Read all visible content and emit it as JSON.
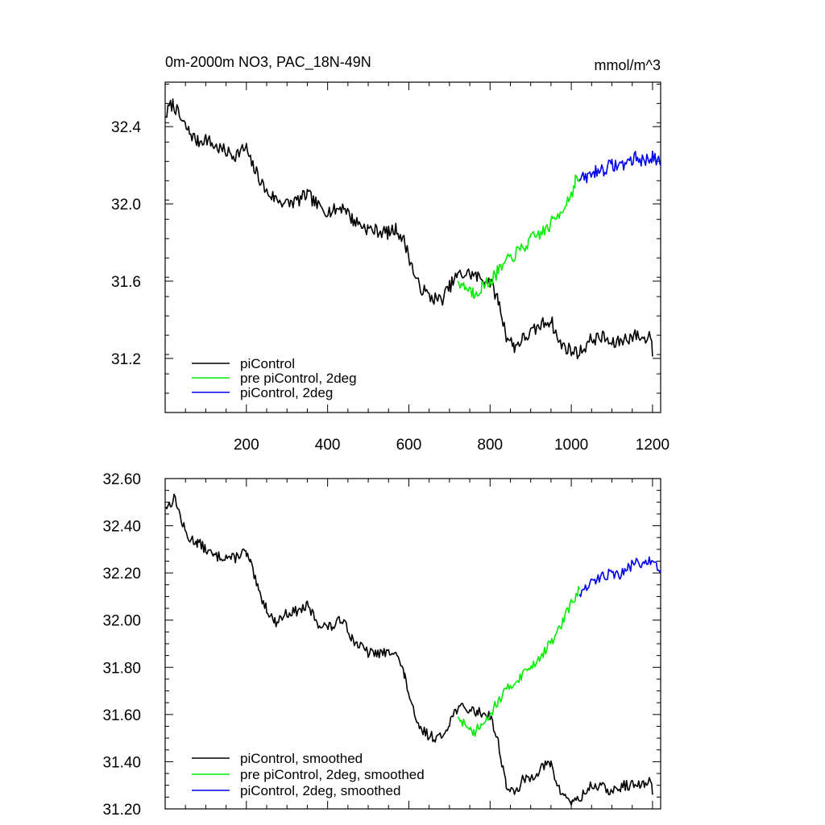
{
  "chart_data": [
    {
      "type": "line",
      "title": "0m-2000m NO3, PAC_18N-49N",
      "units": "mmol/m^3",
      "xlim": [
        0,
        1220
      ],
      "ylim": [
        30.92,
        32.63
      ],
      "x_ticks": [
        200,
        400,
        600,
        800,
        1000,
        1200
      ],
      "x_tick_labels": [
        "200",
        "400",
        "600",
        "800",
        "1000",
        "1200"
      ],
      "y_ticks": [
        31.2,
        31.6,
        32.0,
        32.4
      ],
      "y_tick_labels": [
        "31.2",
        "31.6",
        "32.0",
        "32.4"
      ],
      "grid": false,
      "legend_position": "bottom-left",
      "series": [
        {
          "name": "piControl",
          "color": "#000000",
          "noise": 0.035,
          "points": [
            [
              1,
              32.45
            ],
            [
              10,
              32.5
            ],
            [
              20,
              32.52
            ],
            [
              40,
              32.43
            ],
            [
              60,
              32.37
            ],
            [
              80,
              32.32
            ],
            [
              100,
              32.34
            ],
            [
              120,
              32.3
            ],
            [
              150,
              32.27
            ],
            [
              170,
              32.25
            ],
            [
              190,
              32.28
            ],
            [
              200,
              32.29
            ],
            [
              210,
              32.22
            ],
            [
              230,
              32.14
            ],
            [
              250,
              32.06
            ],
            [
              270,
              32.03
            ],
            [
              300,
              32.0
            ],
            [
              330,
              32.02
            ],
            [
              350,
              32.05
            ],
            [
              380,
              31.98
            ],
            [
              410,
              31.96
            ],
            [
              440,
              31.99
            ],
            [
              460,
              31.92
            ],
            [
              500,
              31.87
            ],
            [
              550,
              31.85
            ],
            [
              570,
              31.87
            ],
            [
              590,
              31.8
            ],
            [
              620,
              31.59
            ],
            [
              650,
              31.52
            ],
            [
              680,
              31.5
            ],
            [
              700,
              31.57
            ],
            [
              720,
              31.63
            ],
            [
              750,
              31.64
            ],
            [
              770,
              31.62
            ],
            [
              800,
              31.6
            ],
            [
              820,
              31.5
            ],
            [
              840,
              31.32
            ],
            [
              860,
              31.26
            ],
            [
              880,
              31.3
            ],
            [
              900,
              31.33
            ],
            [
              930,
              31.38
            ],
            [
              950,
              31.4
            ],
            [
              970,
              31.28
            ],
            [
              1000,
              31.24
            ],
            [
              1020,
              31.23
            ],
            [
              1050,
              31.3
            ],
            [
              1080,
              31.31
            ],
            [
              1100,
              31.27
            ],
            [
              1130,
              31.3
            ],
            [
              1160,
              31.32
            ],
            [
              1180,
              31.3
            ],
            [
              1195,
              31.33
            ],
            [
              1200,
              31.21
            ]
          ]
        },
        {
          "name": "pre piControl, 2deg",
          "color": "#00ee00",
          "noise": 0.035,
          "points": [
            [
              720,
              31.6
            ],
            [
              740,
              31.57
            ],
            [
              760,
              31.54
            ],
            [
              780,
              31.57
            ],
            [
              800,
              31.6
            ],
            [
              820,
              31.65
            ],
            [
              850,
              31.72
            ],
            [
              880,
              31.77
            ],
            [
              910,
              31.83
            ],
            [
              940,
              31.87
            ],
            [
              970,
              31.95
            ],
            [
              1000,
              32.05
            ],
            [
              1010,
              32.12
            ],
            [
              1020,
              32.13
            ]
          ]
        },
        {
          "name": "piControl, 2deg",
          "color": "#0000ee",
          "noise": 0.035,
          "points": [
            [
              1020,
              32.12
            ],
            [
              1040,
              32.14
            ],
            [
              1060,
              32.17
            ],
            [
              1080,
              32.18
            ],
            [
              1100,
              32.2
            ],
            [
              1120,
              32.2
            ],
            [
              1140,
              32.22
            ],
            [
              1160,
              32.24
            ],
            [
              1180,
              32.22
            ],
            [
              1200,
              32.25
            ],
            [
              1220,
              32.2
            ]
          ]
        }
      ]
    },
    {
      "type": "line",
      "title": "",
      "xlim": [
        0,
        1220
      ],
      "ylim": [
        31.2,
        32.6
      ],
      "x_ticks": [
        200,
        400,
        600,
        800,
        1000,
        1200
      ],
      "y_ticks": [
        31.2,
        31.4,
        31.6,
        31.8,
        32.0,
        32.2,
        32.4,
        32.6
      ],
      "y_tick_labels": [
        "31.20",
        "31.40",
        "31.60",
        "31.80",
        "32.00",
        "32.20",
        "32.40",
        "32.60"
      ],
      "grid": false,
      "legend_position": "bottom-left",
      "series": [
        {
          "name": "piControl, smoothed",
          "color": "#000000",
          "noise": 0.022,
          "points": [
            [
              1,
              32.48
            ],
            [
              10,
              32.49
            ],
            [
              25,
              32.52
            ],
            [
              40,
              32.42
            ],
            [
              55,
              32.35
            ],
            [
              80,
              32.33
            ],
            [
              100,
              32.3
            ],
            [
              120,
              32.27
            ],
            [
              150,
              32.27
            ],
            [
              170,
              32.26
            ],
            [
              190,
              32.29
            ],
            [
              200,
              32.28
            ],
            [
              210,
              32.24
            ],
            [
              230,
              32.12
            ],
            [
              250,
              32.05
            ],
            [
              270,
              31.99
            ],
            [
              300,
              32.03
            ],
            [
              330,
              32.04
            ],
            [
              350,
              32.06
            ],
            [
              380,
              31.98
            ],
            [
              410,
              31.97
            ],
            [
              440,
              32.01
            ],
            [
              460,
              31.92
            ],
            [
              500,
              31.86
            ],
            [
              550,
              31.86
            ],
            [
              565,
              31.88
            ],
            [
              590,
              31.76
            ],
            [
              620,
              31.55
            ],
            [
              650,
              31.51
            ],
            [
              680,
              31.5
            ],
            [
              700,
              31.57
            ],
            [
              720,
              31.63
            ],
            [
              750,
              31.62
            ],
            [
              770,
              31.61
            ],
            [
              800,
              31.6
            ],
            [
              820,
              31.48
            ],
            [
              840,
              31.3
            ],
            [
              860,
              31.26
            ],
            [
              880,
              31.32
            ],
            [
              900,
              31.33
            ],
            [
              930,
              31.38
            ],
            [
              950,
              31.39
            ],
            [
              970,
              31.28
            ],
            [
              1000,
              31.23
            ],
            [
              1020,
              31.24
            ],
            [
              1050,
              31.3
            ],
            [
              1080,
              31.29
            ],
            [
              1100,
              31.27
            ],
            [
              1130,
              31.3
            ],
            [
              1160,
              31.3
            ],
            [
              1180,
              31.3
            ],
            [
              1195,
              31.33
            ],
            [
              1200,
              31.26
            ]
          ]
        },
        {
          "name": "pre piControl, 2deg, smoothed",
          "color": "#00ee00",
          "noise": 0.022,
          "points": [
            [
              720,
              31.59
            ],
            [
              740,
              31.56
            ],
            [
              760,
              31.52
            ],
            [
              780,
              31.57
            ],
            [
              800,
              31.6
            ],
            [
              820,
              31.66
            ],
            [
              850,
              31.72
            ],
            [
              880,
              31.77
            ],
            [
              910,
              31.82
            ],
            [
              940,
              31.88
            ],
            [
              970,
              31.96
            ],
            [
              1000,
              32.07
            ],
            [
              1020,
              32.13
            ]
          ]
        },
        {
          "name": "piControl, 2deg, smoothed",
          "color": "#0000ee",
          "noise": 0.022,
          "points": [
            [
              1020,
              32.11
            ],
            [
              1040,
              32.14
            ],
            [
              1060,
              32.17
            ],
            [
              1080,
              32.19
            ],
            [
              1100,
              32.2
            ],
            [
              1120,
              32.19
            ],
            [
              1140,
              32.22
            ],
            [
              1160,
              32.25
            ],
            [
              1180,
              32.23
            ],
            [
              1200,
              32.26
            ],
            [
              1220,
              32.21
            ]
          ]
        }
      ]
    }
  ]
}
